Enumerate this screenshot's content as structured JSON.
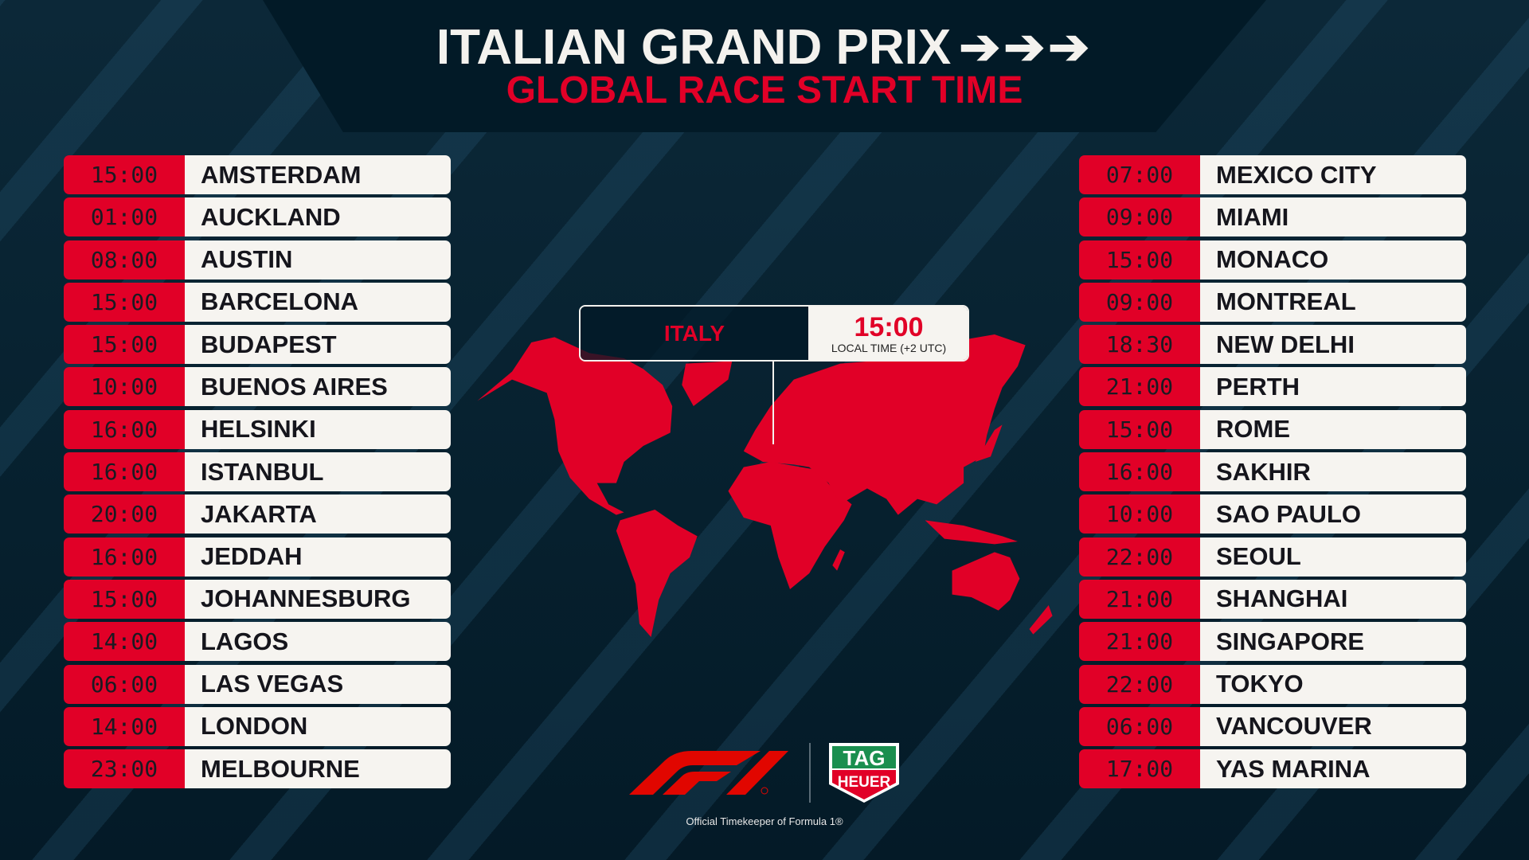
{
  "header": {
    "title": "ITALIAN GRAND PRIX",
    "arrows": "➔➔➔",
    "subtitle": "GLOBAL RACE START TIME"
  },
  "left_column": [
    {
      "time": "15:00",
      "city": "AMSTERDAM"
    },
    {
      "time": "01:00",
      "city": "AUCKLAND"
    },
    {
      "time": "08:00",
      "city": "AUSTIN"
    },
    {
      "time": "15:00",
      "city": "BARCELONA"
    },
    {
      "time": "15:00",
      "city": "BUDAPEST"
    },
    {
      "time": "10:00",
      "city": "BUENOS AIRES"
    },
    {
      "time": "16:00",
      "city": "HELSINKI"
    },
    {
      "time": "16:00",
      "city": "ISTANBUL"
    },
    {
      "time": "20:00",
      "city": "JAKARTA"
    },
    {
      "time": "16:00",
      "city": "JEDDAH"
    },
    {
      "time": "15:00",
      "city": "JOHANNESBURG"
    },
    {
      "time": "14:00",
      "city": "LAGOS"
    },
    {
      "time": "06:00",
      "city": "LAS VEGAS"
    },
    {
      "time": "14:00",
      "city": "LONDON"
    },
    {
      "time": "23:00",
      "city": "MELBOURNE"
    }
  ],
  "right_column": [
    {
      "time": "07:00",
      "city": "MEXICO CITY"
    },
    {
      "time": "09:00",
      "city": "MIAMI"
    },
    {
      "time": "15:00",
      "city": "MONACO"
    },
    {
      "time": "09:00",
      "city": "MONTREAL"
    },
    {
      "time": "18:30",
      "city": "NEW DELHI"
    },
    {
      "time": "21:00",
      "city": "PERTH"
    },
    {
      "time": "15:00",
      "city": "ROME"
    },
    {
      "time": "16:00",
      "city": "SAKHIR"
    },
    {
      "time": "10:00",
      "city": "SAO PAULO"
    },
    {
      "time": "22:00",
      "city": "SEOUL"
    },
    {
      "time": "21:00",
      "city": "SHANGHAI"
    },
    {
      "time": "21:00",
      "city": "SINGAPORE"
    },
    {
      "time": "22:00",
      "city": "TOKYO"
    },
    {
      "time": "06:00",
      "city": "VANCOUVER"
    },
    {
      "time": "17:00",
      "city": "YAS MARINA"
    }
  ],
  "info_box": {
    "country": "ITALY",
    "local_time": "15:00",
    "label": "LOCAL TIME (+2 UTC)"
  },
  "footer": {
    "f1_logo": "F1",
    "tag_logo_top": "TAG",
    "tag_logo_bottom": "HEUER",
    "text": "Official Timekeeper of Formula 1®"
  },
  "colors": {
    "accent": "#e10027",
    "background": "#0b2232",
    "row": "#f6f4f0",
    "tag_green": "#1a8f4f"
  }
}
